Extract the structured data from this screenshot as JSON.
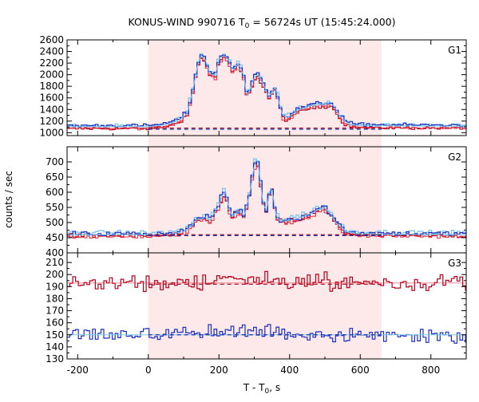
{
  "chart_data": {
    "type": "line",
    "title": {
      "main": "KONUS-WIND 990716 T",
      "sub": "0",
      "rest": " = 56724s UT (15:45:24.000)"
    },
    "xlabel": {
      "main": "T - T",
      "sub": "0",
      "rest": ", s"
    },
    "ylabel": "counts / sec",
    "xlim": [
      -230,
      900
    ],
    "xticks": [
      -200,
      0,
      200,
      400,
      600,
      800
    ],
    "x_tick_labels": [
      "-200",
      "0",
      "200",
      "400",
      "600",
      "800"
    ],
    "shaded_interval": [
      0,
      660
    ],
    "colors": {
      "shade": "#fde8ea",
      "dark_red": "#b3001b",
      "bright_red": "#e8283c",
      "dark_blue": "#1a2fbf",
      "light_blue": "#7fc6ef",
      "bg_dash_red": "#a00020",
      "bg_dash_blue": "#2030a0"
    },
    "panels": [
      {
        "name": "G1",
        "ylim": [
          950,
          2600
        ],
        "yticks": [
          1000,
          1200,
          1400,
          1600,
          1800,
          2000,
          2200,
          2400,
          2600
        ],
        "y_tick_labels": [
          "1000",
          "1200",
          "1400",
          "1600",
          "1800",
          "2000",
          "2200",
          "2400",
          "2600"
        ],
        "background_level": 1080,
        "curves_profile": [
          [
            -230,
            1105
          ],
          [
            0,
            1105
          ],
          [
            40,
            1130
          ],
          [
            70,
            1175
          ],
          [
            90,
            1230
          ],
          [
            110,
            1330
          ],
          [
            125,
            1700
          ],
          [
            140,
            2180
          ],
          [
            150,
            2330
          ],
          [
            160,
            2280
          ],
          [
            175,
            2010
          ],
          [
            190,
            1990
          ],
          [
            200,
            2280
          ],
          [
            215,
            2330
          ],
          [
            225,
            2270
          ],
          [
            240,
            2070
          ],
          [
            255,
            2200
          ],
          [
            270,
            1980
          ],
          [
            280,
            1600
          ],
          [
            290,
            1780
          ],
          [
            300,
            1950
          ],
          [
            310,
            2010
          ],
          [
            320,
            1890
          ],
          [
            330,
            1780
          ],
          [
            340,
            1620
          ],
          [
            350,
            1690
          ],
          [
            360,
            1800
          ],
          [
            370,
            1520
          ],
          [
            380,
            1300
          ],
          [
            395,
            1260
          ],
          [
            410,
            1330
          ],
          [
            430,
            1410
          ],
          [
            460,
            1460
          ],
          [
            490,
            1490
          ],
          [
            510,
            1500
          ],
          [
            525,
            1470
          ],
          [
            540,
            1300
          ],
          [
            560,
            1180
          ],
          [
            580,
            1130
          ],
          [
            640,
            1120
          ],
          [
            900,
            1110
          ]
        ]
      },
      {
        "name": "G2",
        "ylim": [
          400,
          750
        ],
        "yticks": [
          400,
          450,
          500,
          550,
          600,
          650,
          700
        ],
        "y_tick_labels": [
          "400",
          "450",
          "500",
          "550",
          "600",
          "650",
          "700"
        ],
        "background_level": 460,
        "curves_profile": [
          [
            -230,
            460
          ],
          [
            0,
            460
          ],
          [
            60,
            462
          ],
          [
            100,
            470
          ],
          [
            120,
            485
          ],
          [
            135,
            510
          ],
          [
            150,
            510
          ],
          [
            160,
            520
          ],
          [
            175,
            505
          ],
          [
            185,
            530
          ],
          [
            200,
            555
          ],
          [
            210,
            590
          ],
          [
            218,
            605
          ],
          [
            228,
            550
          ],
          [
            238,
            520
          ],
          [
            250,
            535
          ],
          [
            262,
            535
          ],
          [
            272,
            520
          ],
          [
            280,
            560
          ],
          [
            290,
            615
          ],
          [
            300,
            690
          ],
          [
            308,
            715
          ],
          [
            316,
            650
          ],
          [
            325,
            560
          ],
          [
            335,
            540
          ],
          [
            345,
            615
          ],
          [
            352,
            600
          ],
          [
            360,
            530
          ],
          [
            372,
            505
          ],
          [
            390,
            505
          ],
          [
            410,
            510
          ],
          [
            440,
            520
          ],
          [
            470,
            535
          ],
          [
            490,
            548
          ],
          [
            500,
            548
          ],
          [
            515,
            530
          ],
          [
            530,
            500
          ],
          [
            560,
            470
          ],
          [
            600,
            462
          ],
          [
            900,
            460
          ]
        ]
      },
      {
        "name": "G3",
        "ylim": [
          130,
          218
        ],
        "yticks": [
          130,
          140,
          150,
          160,
          170,
          180,
          190,
          200,
          210
        ],
        "y_tick_labels": [
          "130",
          "140",
          "150",
          "160",
          "170",
          "180",
          "190",
          "200",
          "210"
        ],
        "red_level": 193,
        "blue_level": 150,
        "red_dash_level": 192,
        "blue_dash_level": 150
      }
    ]
  }
}
